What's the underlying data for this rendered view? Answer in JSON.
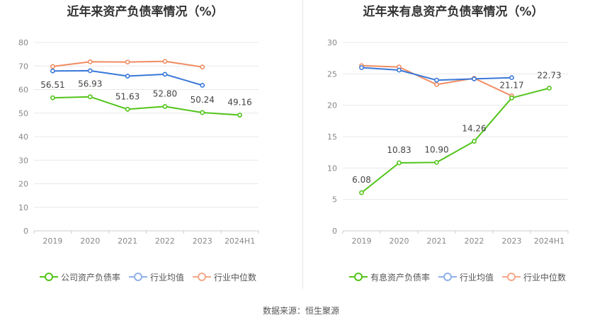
{
  "footer": {
    "source": "数据来源：恒生聚源"
  },
  "legends": {
    "left": [
      {
        "label": "公司资产负债率",
        "color": "#52c41a"
      },
      {
        "label": "行业均值",
        "color": "#8fb0ea"
      },
      {
        "label": "行业中位数",
        "color": "#f5a88a"
      }
    ],
    "right": [
      {
        "label": "有息资产负债率",
        "color": "#52c41a"
      },
      {
        "label": "行业均值",
        "color": "#8fb0ea"
      },
      {
        "label": "行业中位数",
        "color": "#f5a88a"
      }
    ]
  },
  "chart_data": [
    {
      "type": "line",
      "title": "近年来资产负债率情况（%）",
      "categories": [
        "2019",
        "2020",
        "2021",
        "2022",
        "2023",
        "2024H1"
      ],
      "ylim": [
        0,
        80
      ],
      "yticks": [
        0,
        10,
        20,
        30,
        40,
        50,
        60,
        70,
        80
      ],
      "grid": true,
      "legend_position": "bottom",
      "series": [
        {
          "name": "公司资产负债率",
          "color": "#52c41a",
          "values": [
            56.51,
            56.93,
            51.63,
            52.8,
            50.24,
            49.16
          ],
          "labels": [
            "56.51",
            "56.93",
            "51.63",
            "52.80",
            "50.24",
            "49.16"
          ]
        },
        {
          "name": "行业均值",
          "color": "#3a78d8",
          "values": [
            67.9,
            68.0,
            65.7,
            66.5,
            61.8,
            null
          ]
        },
        {
          "name": "行业中位数",
          "color": "#f08c62",
          "values": [
            69.8,
            71.8,
            71.7,
            72.0,
            69.6,
            null
          ]
        }
      ]
    },
    {
      "type": "line",
      "title": "近年来有息资产负债率情况（%）",
      "categories": [
        "2019",
        "2020",
        "2021",
        "2022",
        "2023",
        "2024H1"
      ],
      "ylim": [
        0,
        30
      ],
      "yticks": [
        0,
        5,
        10,
        15,
        20,
        25,
        30
      ],
      "grid": true,
      "legend_position": "bottom",
      "series": [
        {
          "name": "有息资产负债率",
          "color": "#52c41a",
          "values": [
            6.08,
            10.83,
            10.9,
            14.26,
            21.17,
            22.73
          ],
          "labels": [
            "6.08",
            "10.83",
            "10.90",
            "14.26",
            "21.17",
            "22.73"
          ]
        },
        {
          "name": "行业均值",
          "color": "#3a78d8",
          "values": [
            26.0,
            25.6,
            24.0,
            24.2,
            24.4,
            null
          ]
        },
        {
          "name": "行业中位数",
          "color": "#f08c62",
          "values": [
            26.3,
            26.1,
            23.3,
            24.3,
            21.5,
            null
          ]
        }
      ]
    }
  ]
}
